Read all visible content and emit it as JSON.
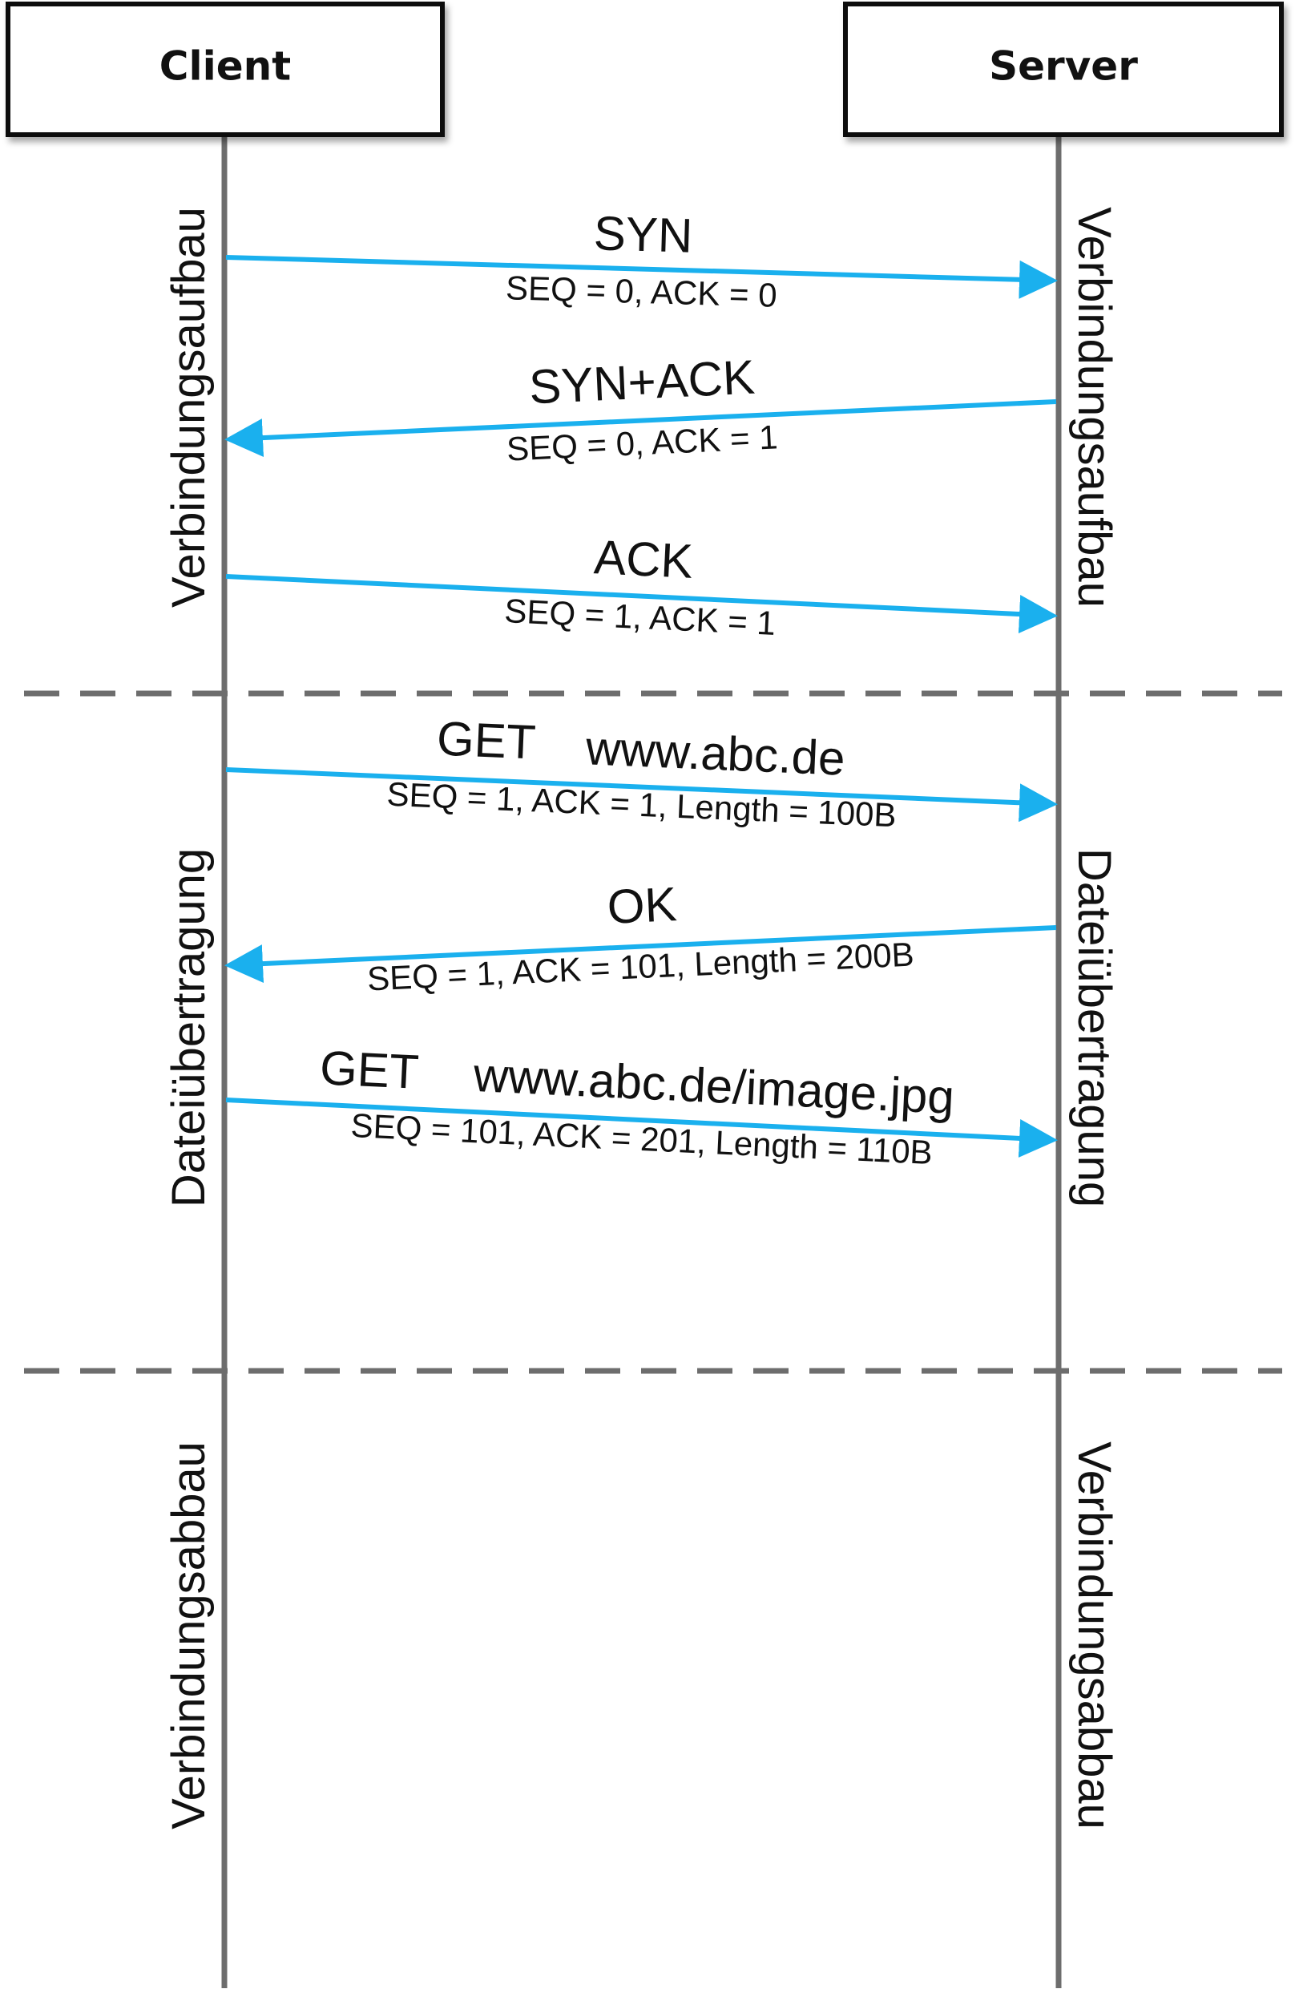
{
  "participants": {
    "client": "Client",
    "server": "Server"
  },
  "phases": {
    "connection_setup": "Verbindungsaufbau",
    "file_transfer": "Dateiübertragung",
    "connection_teardown": "Verbindungsabbau"
  },
  "messages": [
    {
      "direction": "client-to-server",
      "title": "SYN",
      "detail": "SEQ = 0, ACK = 0"
    },
    {
      "direction": "server-to-client",
      "title": "SYN+ACK",
      "detail": "SEQ = 0, ACK = 1"
    },
    {
      "direction": "client-to-server",
      "title": "ACK",
      "detail": "SEQ = 1, ACK = 1"
    },
    {
      "direction": "client-to-server",
      "title": "GET",
      "url": "www.abc.de",
      "detail": "SEQ = 1, ACK = 1, Length = 100B"
    },
    {
      "direction": "server-to-client",
      "title": "OK",
      "detail": "SEQ = 1, ACK = 101, Length = 200B"
    },
    {
      "direction": "client-to-server",
      "title": "GET",
      "url": "www.abc.de/image.jpg",
      "detail": "SEQ = 101, ACK = 201, Length = 110B"
    }
  ],
  "colors": {
    "arrow": "#1ab0ee",
    "lifeline": "#6d6d6d",
    "separator": "#6d6d6d",
    "box_border": "#111111",
    "text": "#111111"
  }
}
